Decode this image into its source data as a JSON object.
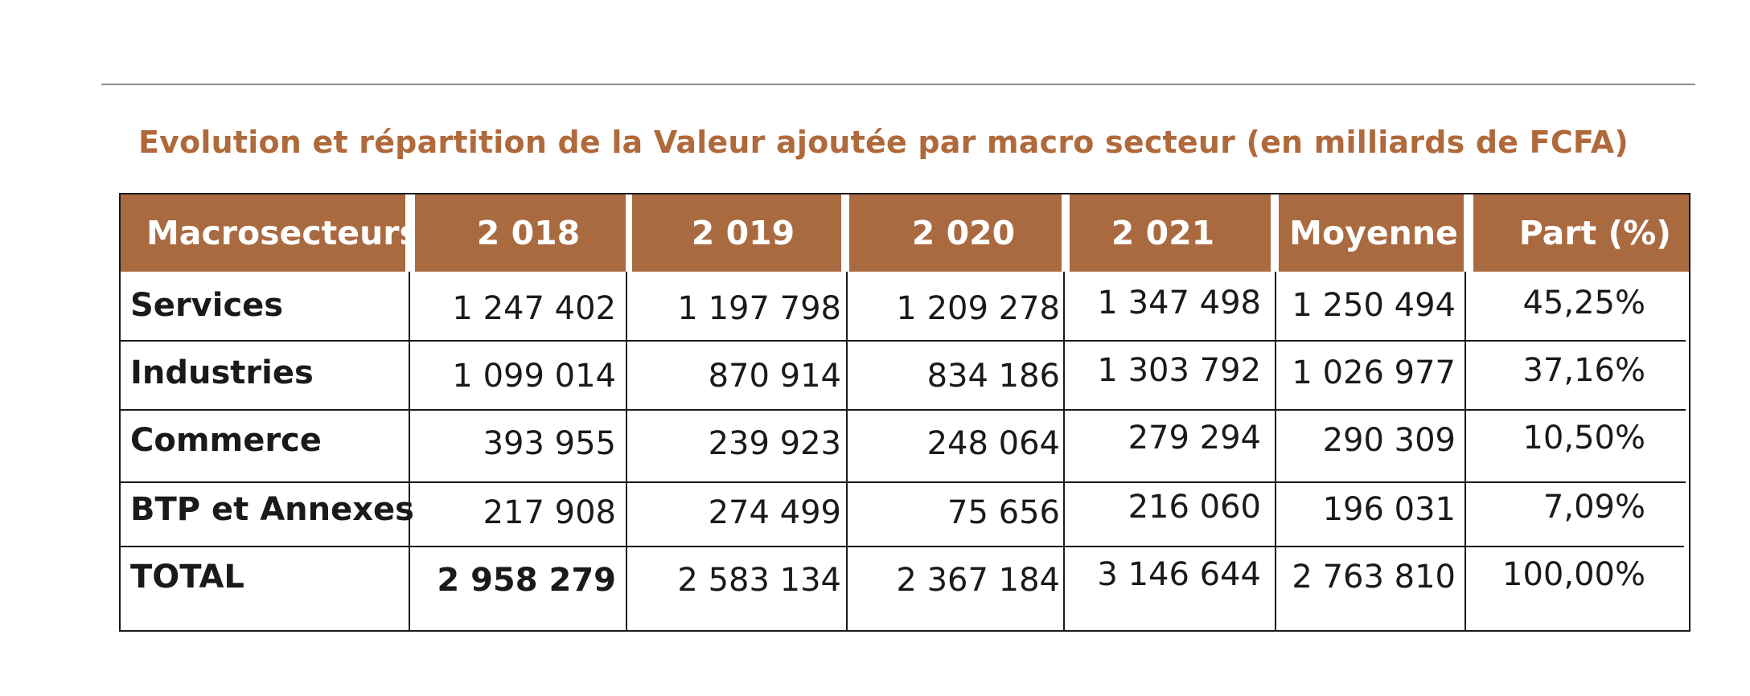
{
  "title": "Evolution et répartition de la Valeur ajoutée par macro secteur (en milliards de FCFA)",
  "colors": {
    "header_bg": "#a96a40",
    "title": "#b0693a",
    "rule": "#8c8c8c"
  },
  "table": {
    "headers": [
      "Macrosecteurs",
      "2 018",
      "2 019",
      "2 020",
      "2 021",
      "Moyenne",
      "Part (%)"
    ],
    "rows": [
      {
        "label": "Services",
        "values": [
          "1 247 402",
          "1 197 798",
          "1 209 278",
          "1 347 498",
          "1 250 494",
          "45,25%"
        ]
      },
      {
        "label": "Industries",
        "values": [
          "1 099 014",
          "870 914",
          "834 186",
          "1 303 792",
          "1 026 977",
          "37,16%"
        ]
      },
      {
        "label": "Commerce",
        "values": [
          "393 955",
          "239 923",
          "248 064",
          "279 294",
          "290 309",
          "10,50%"
        ]
      },
      {
        "label": "BTP et Annexes",
        "values": [
          "217 908",
          "274 499",
          "75 656",
          "216 060",
          "196 031",
          "7,09%"
        ]
      },
      {
        "label": "TOTAL",
        "values": [
          "2 958 279",
          "2 583 134",
          "2 367 184",
          "3 146 644",
          "2 763 810",
          "100,00%"
        ]
      }
    ]
  }
}
